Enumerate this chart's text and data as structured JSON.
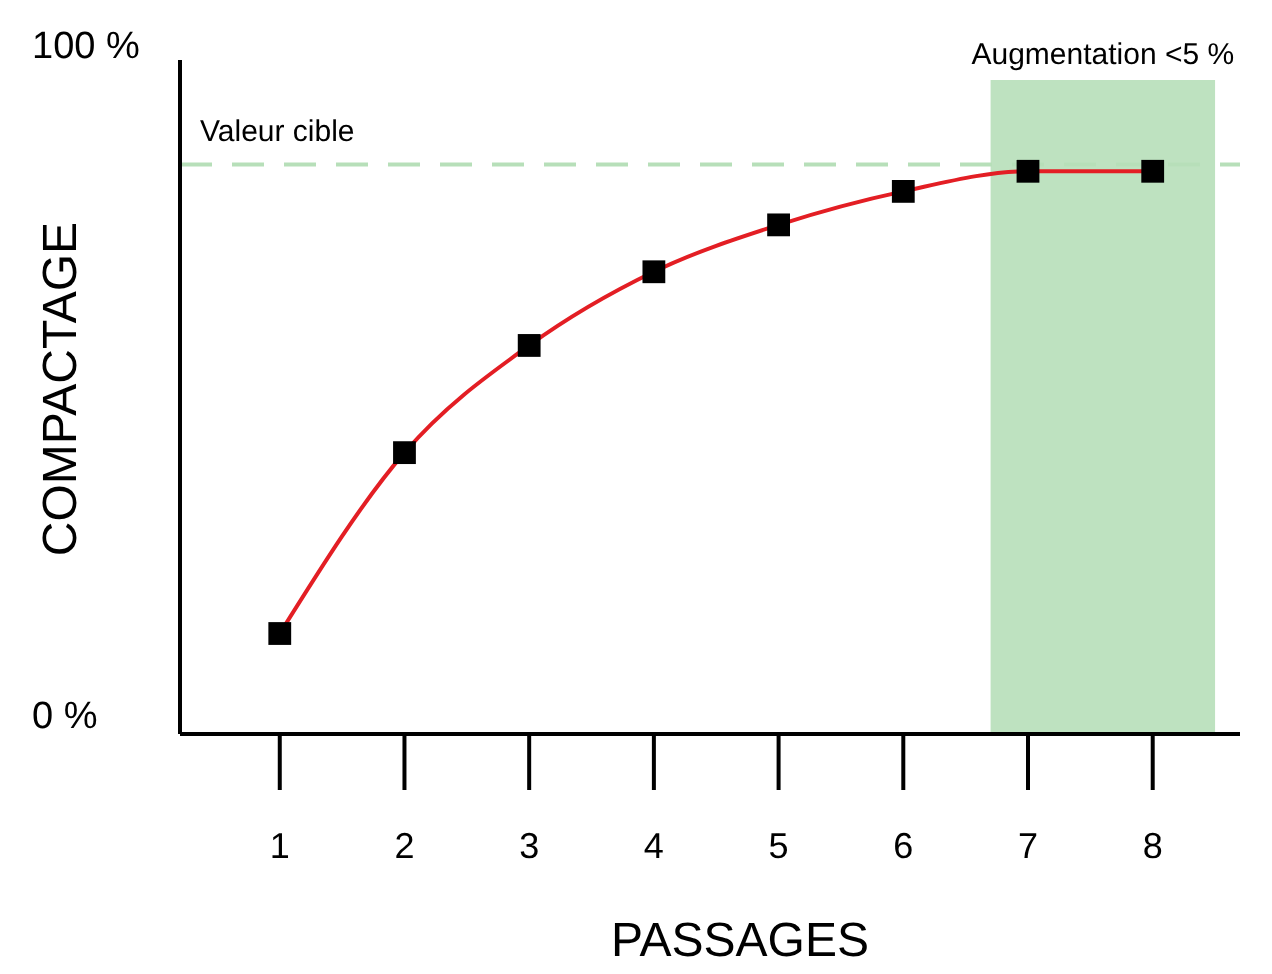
{
  "chart_data": {
    "type": "line",
    "xlabel": "PASSAGES",
    "ylabel": "COMPACTAGE",
    "x": [
      1,
      2,
      3,
      4,
      5,
      6,
      7,
      8
    ],
    "series": [
      {
        "color": "#e31e24",
        "values": [
          12,
          39,
          55,
          66,
          73,
          78,
          81,
          81
        ]
      }
    ],
    "marker": "square",
    "line_style": "solid",
    "grid": false,
    "xlim": [
      0.2,
      8.7
    ],
    "xticks": [
      1,
      2,
      3,
      4,
      5,
      6,
      7,
      8
    ],
    "ylim": [
      -3,
      100
    ],
    "yticks": [
      {
        "value": 0,
        "label": "0 %"
      },
      {
        "value": 100,
        "label": "100 %"
      }
    ],
    "ref_lines": [
      {
        "axis": "y",
        "value": 82,
        "label": "Valeur cible",
        "color": "#b7dfb9",
        "line_style": "dashed"
      }
    ],
    "bands": [
      {
        "axis": "x",
        "from": 6.7,
        "to": 8.5,
        "label": "Augmentation <5 %",
        "color": "#b7dfb9"
      }
    ]
  }
}
